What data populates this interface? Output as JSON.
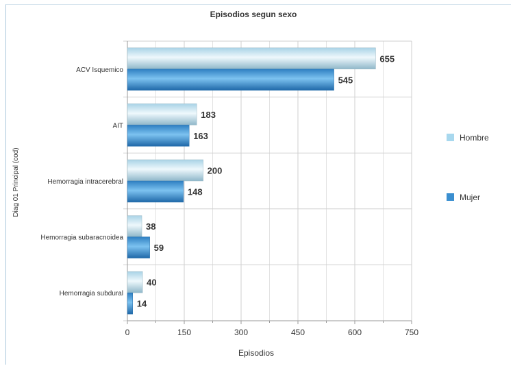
{
  "chart_data": {
    "type": "bar",
    "orientation": "horizontal",
    "title": "Episodios segun sexo",
    "xlabel": "Episodios",
    "ylabel": "Diag 01 Principal    (cod)",
    "categories": [
      "ACV Isquemico",
      "AIT",
      "Hemorragia intracerebral",
      "Hemorragia subaracnoidea",
      "Hemorragia subdural"
    ],
    "series": [
      {
        "name": "Hombre",
        "values": [
          655,
          183,
          200,
          38,
          40
        ],
        "color": "#a8d8ee"
      },
      {
        "name": "Mujer",
        "values": [
          545,
          163,
          148,
          59,
          14
        ],
        "color": "#3a8fd0"
      }
    ],
    "xlim": [
      0,
      750
    ],
    "ticks": [
      0,
      150,
      300,
      450,
      600,
      750
    ],
    "grid": true,
    "legend": "right"
  }
}
